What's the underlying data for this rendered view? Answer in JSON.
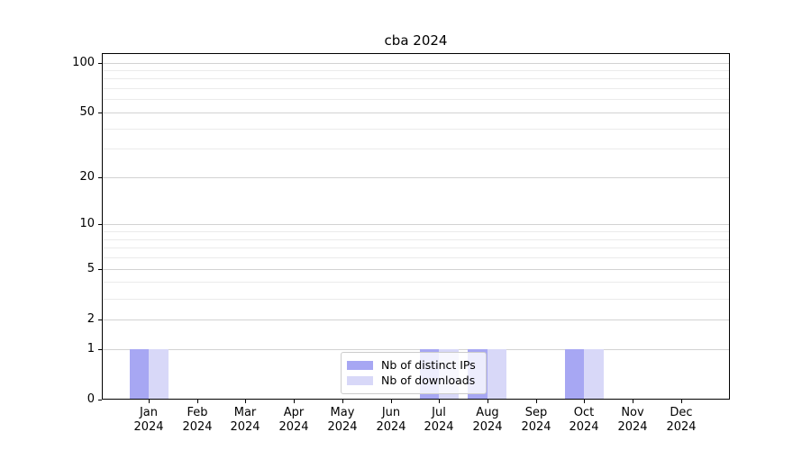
{
  "title": "cba 2024",
  "legend": {
    "items": [
      {
        "label": "Nb of distinct IPs",
        "color": "#a7a7f3"
      },
      {
        "label": "Nb of downloads",
        "color": "#d8d8f8"
      }
    ],
    "position": "lower center"
  },
  "axes": {
    "y_major_ticks": [
      0,
      1,
      2,
      5,
      10,
      20,
      50,
      100
    ],
    "y_minor_ticks": [
      3,
      4,
      6,
      7,
      8,
      9,
      30,
      40,
      60,
      70,
      80,
      90
    ],
    "x_tick_year": "2024"
  },
  "chart_data": {
    "type": "bar",
    "title": "cba 2024",
    "categories": [
      "Jan 2024",
      "Feb 2024",
      "Mar 2024",
      "Apr 2024",
      "May 2024",
      "Jun 2024",
      "Jul 2024",
      "Aug 2024",
      "Sep 2024",
      "Oct 2024",
      "Nov 2024",
      "Dec 2024"
    ],
    "series": [
      {
        "name": "Nb of distinct IPs",
        "color": "#a7a7f3",
        "values": [
          1,
          0,
          0,
          0,
          0,
          0,
          1,
          1,
          0,
          1,
          0,
          0
        ]
      },
      {
        "name": "Nb of downloads",
        "color": "#d8d8f8",
        "values": [
          1,
          0,
          0,
          0,
          0,
          0,
          1,
          1,
          0,
          1,
          0,
          0
        ]
      }
    ],
    "xlabel": "",
    "ylabel": "",
    "yscale": "log1p",
    "yticks": [
      0,
      1,
      2,
      5,
      10,
      20,
      50,
      100
    ],
    "ylim": [
      0,
      114
    ],
    "grid": "horizontal major+minor",
    "legend_position": "lower center"
  }
}
